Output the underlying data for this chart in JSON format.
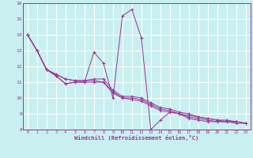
{
  "xlabel": "Windchill (Refroidissement éolien,°C)",
  "ylabel": "",
  "bg_color": "#c8f0f0",
  "grid_color": "#ffffff",
  "line_color": "#993399",
  "xlim": [
    -0.5,
    23.5
  ],
  "ylim": [
    8,
    16
  ],
  "xticks": [
    0,
    1,
    2,
    3,
    4,
    5,
    6,
    7,
    8,
    9,
    10,
    11,
    12,
    13,
    14,
    15,
    16,
    17,
    18,
    19,
    20,
    21,
    22,
    23
  ],
  "yticks": [
    8,
    9,
    10,
    11,
    12,
    13,
    14,
    15,
    16
  ],
  "series": [
    [
      14.0,
      13.0,
      11.8,
      11.4,
      10.9,
      11.0,
      11.0,
      12.9,
      12.2,
      10.0,
      15.2,
      15.6,
      13.8,
      8.0,
      8.6,
      9.1,
      9.0,
      8.7,
      8.6,
      8.5,
      8.5,
      8.5,
      8.5,
      8.4
    ],
    [
      14.0,
      13.0,
      11.8,
      11.5,
      11.2,
      11.1,
      11.1,
      11.2,
      11.2,
      10.5,
      10.1,
      10.1,
      10.0,
      9.7,
      9.4,
      9.3,
      9.1,
      9.0,
      8.8,
      8.7,
      8.6,
      8.6,
      8.5,
      8.4
    ],
    [
      14.0,
      13.0,
      11.8,
      11.5,
      11.2,
      11.1,
      11.1,
      11.1,
      11.0,
      10.4,
      10.0,
      10.0,
      9.9,
      9.6,
      9.3,
      9.2,
      9.0,
      8.9,
      8.8,
      8.7,
      8.6,
      8.5,
      8.5,
      8.4
    ],
    [
      14.0,
      13.0,
      11.8,
      11.4,
      10.9,
      11.0,
      11.0,
      11.0,
      11.0,
      10.3,
      10.0,
      9.9,
      9.8,
      9.5,
      9.2,
      9.1,
      9.0,
      8.8,
      8.7,
      8.6,
      8.5,
      8.5,
      8.4,
      8.4
    ]
  ]
}
